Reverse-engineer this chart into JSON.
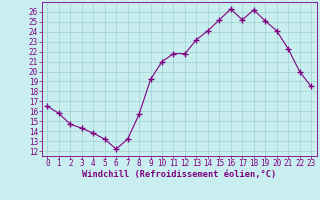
{
  "x": [
    0,
    1,
    2,
    3,
    4,
    5,
    6,
    7,
    8,
    9,
    10,
    11,
    12,
    13,
    14,
    15,
    16,
    17,
    18,
    19,
    20,
    21,
    22,
    23
  ],
  "y": [
    16.5,
    15.8,
    14.7,
    14.3,
    13.8,
    13.2,
    12.2,
    13.2,
    15.7,
    19.2,
    21.0,
    21.8,
    21.8,
    23.2,
    24.1,
    25.2,
    26.3,
    25.2,
    26.2,
    25.1,
    24.1,
    22.3,
    20.0,
    18.5
  ],
  "line_color": "#800080",
  "marker": "+",
  "bg_color": "#c8eef0",
  "grid_color": "#a0d0d0",
  "xlabel": "Windchill (Refroidissement éolien,°C)",
  "xlabel_color": "#800080",
  "tick_color": "#800080",
  "ylim": [
    11.5,
    27
  ],
  "xlim": [
    -0.5,
    23.5
  ],
  "yticks": [
    12,
    13,
    14,
    15,
    16,
    17,
    18,
    19,
    20,
    21,
    22,
    23,
    24,
    25,
    26
  ],
  "xticks": [
    0,
    1,
    2,
    3,
    4,
    5,
    6,
    7,
    8,
    9,
    10,
    11,
    12,
    13,
    14,
    15,
    16,
    17,
    18,
    19,
    20,
    21,
    22,
    23
  ],
  "tick_fontsize": 5.5,
  "xlabel_fontsize": 6.2
}
